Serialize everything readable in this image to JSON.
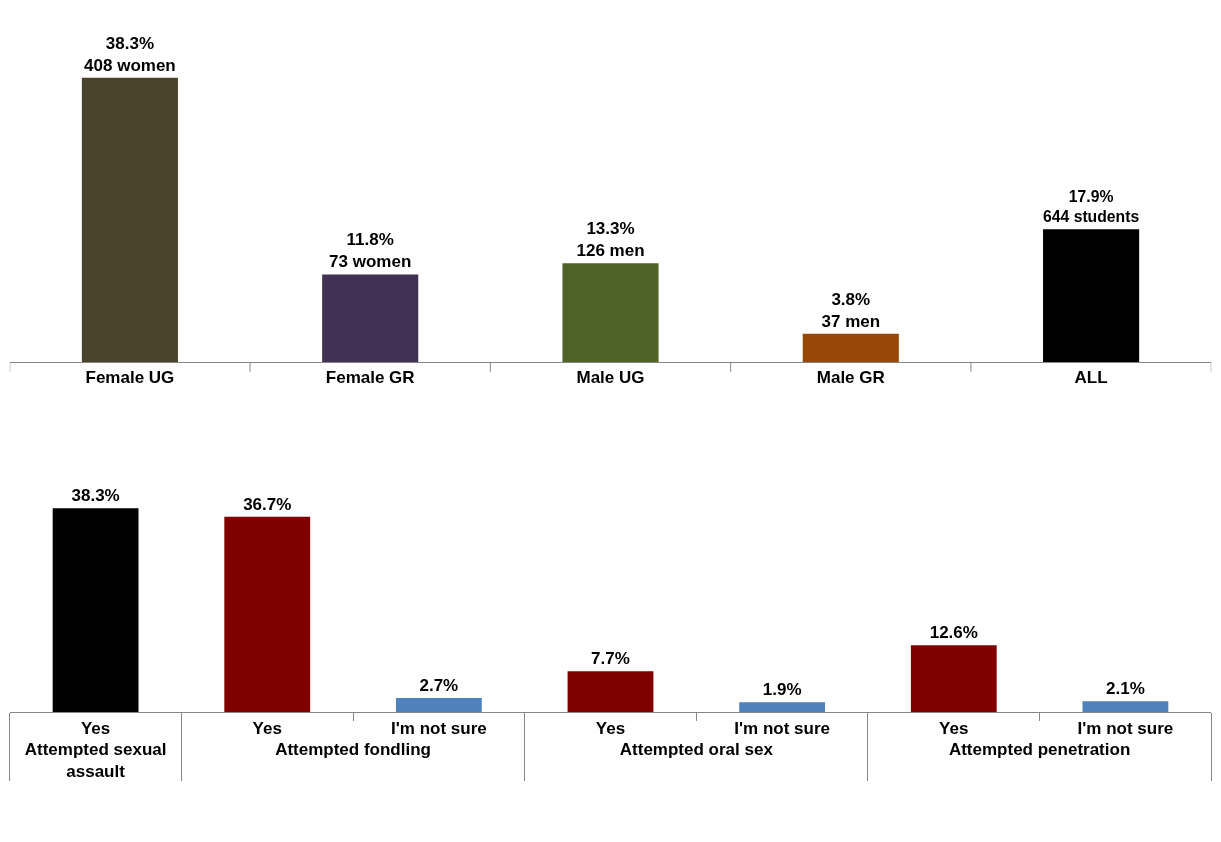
{
  "chart_data": [
    {
      "type": "bar",
      "categories": [
        "Female UG",
        "Female GR",
        "Male UG",
        "Male GR",
        "ALL"
      ],
      "values": [
        38.3,
        11.8,
        13.3,
        3.8,
        17.9
      ],
      "colors": [
        "#4a432c",
        "#413253",
        "#4f6228",
        "#974806",
        "#000000"
      ],
      "value_labels": [
        "38.3%\n408 women",
        "11.8%\n73 women",
        "13.3%\n126 men",
        "3.8%\n37 men",
        "17.9%\n644 students"
      ]
    },
    {
      "type": "bar",
      "categories": [
        "Yes",
        "Yes",
        "I'm not sure",
        "Yes",
        "I'm not sure",
        "Yes",
        "I'm not sure"
      ],
      "values": [
        38.3,
        36.7,
        2.7,
        7.7,
        1.9,
        12.6,
        2.1
      ],
      "colors": [
        "#000000",
        "#800000",
        "#4f81bd",
        "#800000",
        "#4f81bd",
        "#800000",
        "#4f81bd"
      ],
      "value_labels": [
        "38.3%",
        "36.7%",
        "2.7%",
        "7.7%",
        "1.9%",
        "12.6%",
        "2.1%"
      ],
      "annotations": [
        "Attempted sexual assault",
        "Attempted fondling",
        "Attempted oral sex",
        "Attempted penetration"
      ]
    }
  ]
}
